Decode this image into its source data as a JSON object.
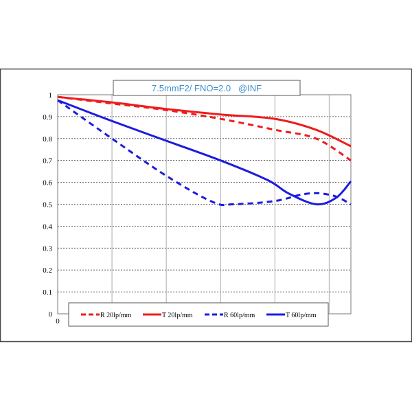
{
  "chart_data": {
    "type": "line",
    "title": "7.5mmF2/ FNO=2.0   @INF",
    "xlabel": "",
    "ylabel": "",
    "x_origin_label": "0",
    "xlim": [
      0,
      5.4
    ],
    "ylim": [
      0,
      1
    ],
    "yticks": [
      "0",
      "0.1",
      "0.2",
      "0.3",
      "0.4",
      "0.5",
      "0.6",
      "0.7",
      "0.8",
      "0.9",
      "1"
    ],
    "grid": true,
    "legend_placement": "bottom",
    "series": [
      {
        "name": "R 20lp/mm",
        "color": "#ee1c1c",
        "dash": true,
        "x": [
          0,
          1,
          2,
          3,
          4,
          4.76,
          5.4
        ],
        "values": [
          0.99,
          0.96,
          0.93,
          0.89,
          0.84,
          0.8,
          0.7
        ]
      },
      {
        "name": "T 20lp/mm",
        "color": "#ee1c1c",
        "dash": false,
        "x": [
          0,
          1,
          2,
          3,
          4,
          4.76,
          5.4
        ],
        "values": [
          0.99,
          0.965,
          0.935,
          0.91,
          0.89,
          0.84,
          0.765
        ]
      },
      {
        "name": "R 60lp/mm",
        "color": "#1c1ce0",
        "dash": true,
        "x": [
          0,
          1,
          2,
          2.86,
          3.24,
          4,
          4.5,
          4.82,
          5.13,
          5.4
        ],
        "values": [
          0.975,
          0.8,
          0.63,
          0.51,
          0.5,
          0.515,
          0.545,
          0.55,
          0.535,
          0.5
        ]
      },
      {
        "name": "T 60lp/mm",
        "color": "#1c1ce0",
        "dash": false,
        "x": [
          0,
          1,
          2,
          3,
          3.87,
          4.25,
          4.76,
          5.13,
          5.4
        ],
        "values": [
          0.975,
          0.88,
          0.79,
          0.7,
          0.61,
          0.55,
          0.5,
          0.53,
          0.605
        ]
      }
    ]
  }
}
